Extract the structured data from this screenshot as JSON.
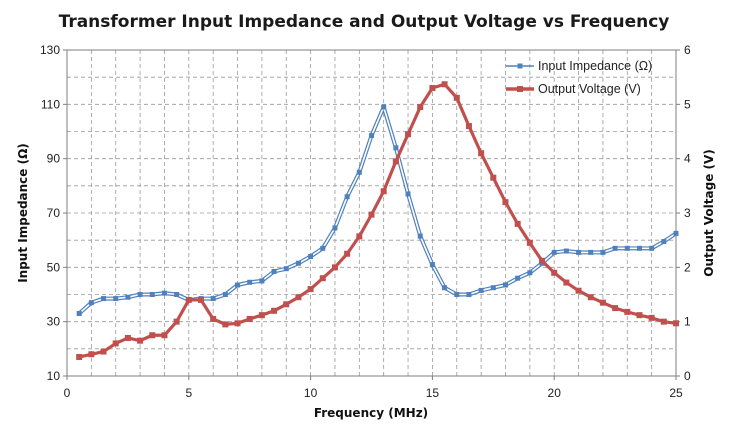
{
  "chart_data": {
    "type": "line",
    "title": "Transformer  Input Impedance and Output Voltage vs Frequency",
    "xlabel": "Frequency (MHz)",
    "ylabel": "Input Impedance (Ω)",
    "y2label": "Output Voltage (V)",
    "xlim": [
      0,
      25
    ],
    "ylim": [
      10,
      130
    ],
    "y2lim": [
      0,
      6
    ],
    "xticks": [
      0,
      5,
      10,
      15,
      20,
      25
    ],
    "yticks": [
      10,
      30,
      50,
      70,
      90,
      110,
      130
    ],
    "y2ticks": [
      0,
      1,
      2,
      3,
      4,
      5,
      6
    ],
    "grid": true,
    "legend_position": "top-right",
    "x": [
      0.5,
      1,
      1.5,
      2,
      2.5,
      3,
      3.5,
      4,
      4.5,
      5,
      5.5,
      6,
      6.5,
      7,
      7.5,
      8,
      8.5,
      9,
      9.5,
      10,
      10.5,
      11,
      11.5,
      12,
      12.5,
      13,
      13.5,
      14,
      14.5,
      15,
      15.5,
      16,
      16.5,
      17,
      17.5,
      18,
      18.5,
      19,
      19.5,
      20,
      20.5,
      21,
      21.5,
      22,
      22.5,
      23,
      23.5,
      24,
      24.5,
      25
    ],
    "series": [
      {
        "name": "Input Impedance (Ω)",
        "axis": "left",
        "color": "#4f81bd",
        "marker": "square",
        "values": [
          33,
          37,
          38.5,
          38.5,
          39,
          40,
          40,
          40.5,
          40,
          38,
          38.5,
          38.5,
          40,
          43.5,
          44.5,
          45,
          48.5,
          49.5,
          51.5,
          54,
          57,
          64.5,
          76,
          85,
          98.5,
          109,
          94,
          77,
          61.5,
          51,
          42.5,
          40,
          40,
          41.5,
          42.5,
          43.5,
          46,
          48,
          51.5,
          55.5,
          56,
          55.5,
          55.5,
          55.5,
          57,
          57,
          57,
          57,
          59.5,
          62.5
        ]
      },
      {
        "name": "Output Voltage (V)",
        "axis": "right",
        "color": "#c0504d",
        "marker": "square",
        "values": [
          0.35,
          0.4,
          0.45,
          0.6,
          0.7,
          0.65,
          0.75,
          0.75,
          1.0,
          1.4,
          1.4,
          1.05,
          0.95,
          0.97,
          1.05,
          1.12,
          1.2,
          1.32,
          1.45,
          1.6,
          1.8,
          2.0,
          2.25,
          2.57,
          2.97,
          3.4,
          3.95,
          4.45,
          4.95,
          5.3,
          5.37,
          5.12,
          4.6,
          4.1,
          3.65,
          3.2,
          2.8,
          2.45,
          2.12,
          1.9,
          1.72,
          1.57,
          1.45,
          1.35,
          1.25,
          1.18,
          1.12,
          1.07,
          1.0,
          0.97
        ]
      }
    ]
  }
}
